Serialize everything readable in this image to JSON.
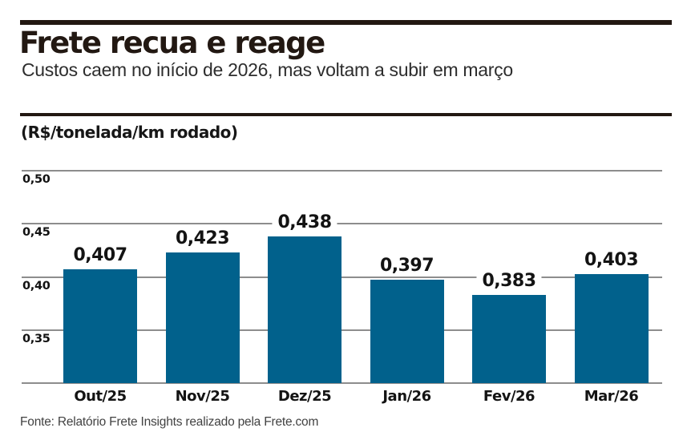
{
  "chart_data": {
    "type": "bar",
    "title": "Frete recua e reage",
    "subtitle": "Custos caem no início de 2026, mas voltam a subir em março",
    "unit_label": "(R$/tonelada/km rodado)",
    "categories": [
      "Out/25",
      "Nov/25",
      "Dez/25",
      "Jan/26",
      "Fev/26",
      "Mar/26"
    ],
    "values": [
      0.407,
      0.423,
      0.438,
      0.397,
      0.383,
      0.403
    ],
    "value_labels": [
      "0,407",
      "0,423",
      "0,438",
      "0,397",
      "0,383",
      "0,403"
    ],
    "yticks": [
      0.5,
      0.45,
      0.4,
      0.35
    ],
    "ytick_labels": [
      "0,50",
      "0,45",
      "0,40",
      "0,35"
    ],
    "ylim": [
      0.3,
      0.5
    ],
    "xlabel": "",
    "ylabel": "",
    "grid": true,
    "legend": null,
    "bar_color": "#01618c",
    "source": "Fonte: Relatório Frete Insights realizado pela Frete.com"
  },
  "colors": {
    "rule_dark": "#221812",
    "gridline": "#8d8d8d",
    "bar": "#01618c"
  }
}
